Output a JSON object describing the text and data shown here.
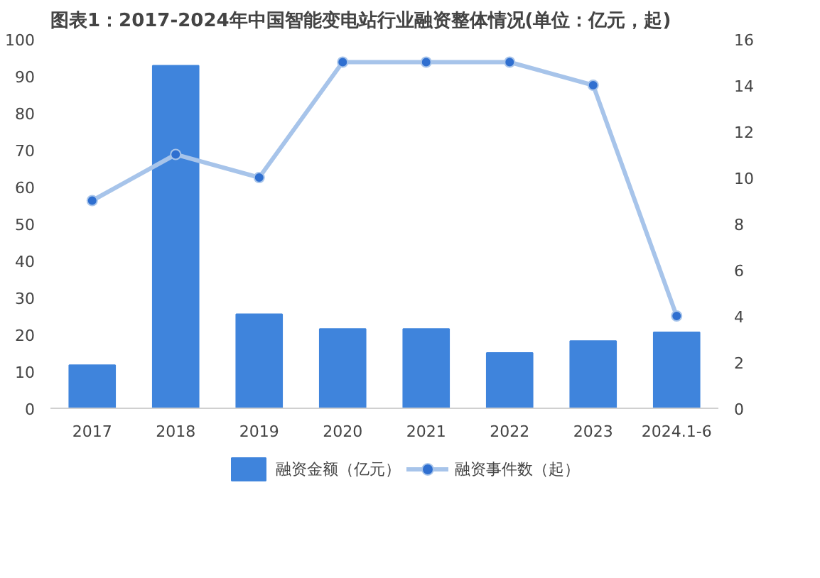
{
  "chart_data": {
    "type": "bar",
    "title": "图表1：2017-2024年中国智能变电站行业融资整体情况(单位：亿元，起)",
    "categories": [
      "2017",
      "2018",
      "2019",
      "2020",
      "2021",
      "2022",
      "2023",
      "2024.1-6"
    ],
    "series": [
      {
        "name": "融资金额（亿元）",
        "color": "#3f84dc",
        "values": [
          11.7,
          92.8,
          25.5,
          21.5,
          21.5,
          15,
          18.2,
          20.6
        ]
      },
      {
        "name": "融资事件数（起）",
        "type": "line",
        "axis": "y2",
        "color": "#a7c4ea",
        "marker": "circle",
        "values": [
          9,
          11,
          10,
          15,
          15,
          15,
          14,
          4
        ]
      }
    ],
    "ylim": [
      0,
      100
    ],
    "yticks": [
      0,
      10,
      20,
      30,
      40,
      50,
      60,
      70,
      80,
      90,
      100
    ],
    "y2lim": [
      0,
      16
    ],
    "y2ticks": [
      0,
      2,
      4,
      6,
      8,
      10,
      12,
      14,
      16
    ],
    "grid": false,
    "legend": "bottom"
  }
}
